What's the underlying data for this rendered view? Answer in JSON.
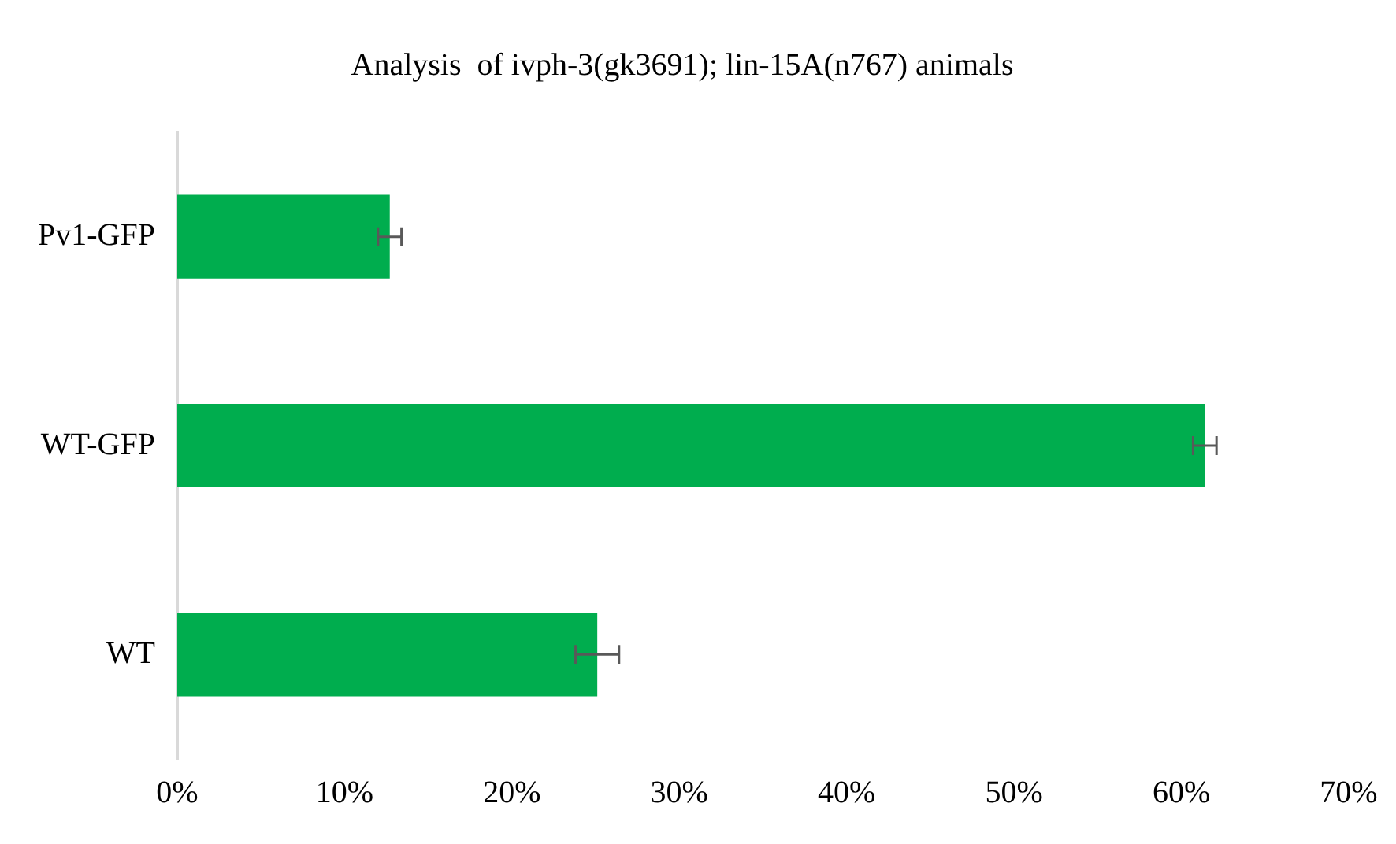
{
  "chart_data": {
    "type": "bar",
    "orientation": "horizontal",
    "title": "Analysis  of ivph-3(gk3691); lin-15A(n767) animals",
    "categories": [
      "Pv1-GFP",
      "WT-GFP",
      "WT"
    ],
    "values": [
      12.7,
      61.4,
      25.1
    ],
    "errors": [
      0.7,
      0.7,
      1.3
    ],
    "color": "#00ad4e",
    "xlim": [
      0,
      70
    ],
    "xticks": [
      {
        "value": 0,
        "label": "0%"
      },
      {
        "value": 10,
        "label": "10%"
      },
      {
        "value": 20,
        "label": "20%"
      },
      {
        "value": 30,
        "label": "30%"
      },
      {
        "value": 40,
        "label": "40%"
      },
      {
        "value": 50,
        "label": "50%"
      },
      {
        "value": 60,
        "label": "60%"
      },
      {
        "value": 70,
        "label": "70%"
      }
    ],
    "grid": false
  }
}
